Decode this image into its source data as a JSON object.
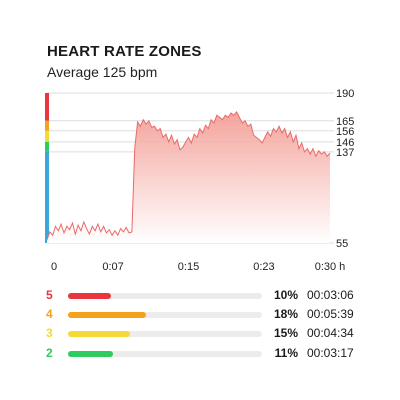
{
  "header": {
    "title": "HEART RATE ZONES",
    "subtitle": "Average 125 bpm"
  },
  "chart_data": {
    "type": "area",
    "title": "HEART RATE ZONES",
    "ylim": [
      55,
      190
    ],
    "xlim": [
      0,
      0.5
    ],
    "y_ticks": [
      "190",
      "165",
      "156",
      "146",
      "137",
      "55"
    ],
    "y_tick_values": [
      190,
      165,
      156,
      146,
      137,
      55
    ],
    "x_ticks": [
      "0",
      "0:07",
      "0:15",
      "0:23",
      "0:30 h"
    ],
    "x_tick_values": [
      0,
      0.1167,
      0.25,
      0.3833,
      0.5
    ],
    "zone_band_colors": [
      "#e8363c",
      "#f4a21a",
      "#f5d936",
      "#2ecc5e",
      "#3aa8d8"
    ],
    "line_color": "#e86a6a",
    "fill_color": "#f7b5b0",
    "series": [
      {
        "values": [
          [
            0.0,
            58
          ],
          [
            0.005,
            65
          ],
          [
            0.01,
            62
          ],
          [
            0.015,
            70
          ],
          [
            0.02,
            66
          ],
          [
            0.025,
            72
          ],
          [
            0.03,
            64
          ],
          [
            0.035,
            70
          ],
          [
            0.04,
            67
          ],
          [
            0.045,
            73
          ],
          [
            0.05,
            63
          ],
          [
            0.055,
            71
          ],
          [
            0.06,
            66
          ],
          [
            0.065,
            74
          ],
          [
            0.07,
            68
          ],
          [
            0.075,
            63
          ],
          [
            0.08,
            70
          ],
          [
            0.085,
            66
          ],
          [
            0.09,
            72
          ],
          [
            0.095,
            65
          ],
          [
            0.1,
            70
          ],
          [
            0.105,
            64
          ],
          [
            0.11,
            67
          ],
          [
            0.115,
            62
          ],
          [
            0.12,
            66
          ],
          [
            0.125,
            62
          ],
          [
            0.13,
            68
          ],
          [
            0.135,
            65
          ],
          [
            0.14,
            69
          ],
          [
            0.145,
            64
          ],
          [
            0.15,
            65
          ],
          [
            0.155,
            140
          ],
          [
            0.16,
            164
          ],
          [
            0.165,
            160
          ],
          [
            0.17,
            166
          ],
          [
            0.175,
            162
          ],
          [
            0.18,
            165
          ],
          [
            0.185,
            159
          ],
          [
            0.19,
            160
          ],
          [
            0.195,
            156
          ],
          [
            0.2,
            158
          ],
          [
            0.205,
            150
          ],
          [
            0.21,
            153
          ],
          [
            0.215,
            146
          ],
          [
            0.22,
            152
          ],
          [
            0.225,
            144
          ],
          [
            0.23,
            148
          ],
          [
            0.235,
            139
          ],
          [
            0.24,
            141
          ],
          [
            0.245,
            146
          ],
          [
            0.25,
            150
          ],
          [
            0.255,
            145
          ],
          [
            0.26,
            153
          ],
          [
            0.265,
            150
          ],
          [
            0.27,
            158
          ],
          [
            0.275,
            154
          ],
          [
            0.28,
            161
          ],
          [
            0.285,
            158
          ],
          [
            0.29,
            166
          ],
          [
            0.295,
            163
          ],
          [
            0.3,
            170
          ],
          [
            0.305,
            168
          ],
          [
            0.31,
            166
          ],
          [
            0.315,
            170
          ],
          [
            0.32,
            168
          ],
          [
            0.325,
            172
          ],
          [
            0.33,
            170
          ],
          [
            0.335,
            173
          ],
          [
            0.34,
            168
          ],
          [
            0.345,
            163
          ],
          [
            0.35,
            165
          ],
          [
            0.355,
            160
          ],
          [
            0.36,
            162
          ],
          [
            0.365,
            152
          ],
          [
            0.37,
            150
          ],
          [
            0.375,
            148
          ],
          [
            0.38,
            145
          ],
          [
            0.385,
            150
          ],
          [
            0.39,
            155
          ],
          [
            0.395,
            151
          ],
          [
            0.4,
            158
          ],
          [
            0.405,
            155
          ],
          [
            0.41,
            160
          ],
          [
            0.415,
            154
          ],
          [
            0.42,
            158
          ],
          [
            0.425,
            150
          ],
          [
            0.43,
            155
          ],
          [
            0.435,
            146
          ],
          [
            0.44,
            152
          ],
          [
            0.445,
            140
          ],
          [
            0.45,
            145
          ],
          [
            0.455,
            137
          ],
          [
            0.46,
            140
          ],
          [
            0.465,
            135
          ],
          [
            0.47,
            140
          ],
          [
            0.475,
            133
          ],
          [
            0.48,
            138
          ],
          [
            0.485,
            135
          ],
          [
            0.49,
            137
          ],
          [
            0.495,
            133
          ],
          [
            0.5,
            136
          ]
        ]
      }
    ]
  },
  "zones": [
    {
      "number": "5",
      "color": "#e8363c",
      "fraction": 0.22,
      "percent": "10%",
      "time": "00:03:06"
    },
    {
      "number": "4",
      "color": "#f4a21a",
      "fraction": 0.4,
      "percent": "18%",
      "time": "00:05:39"
    },
    {
      "number": "3",
      "color": "#f5d936",
      "fraction": 0.32,
      "percent": "15%",
      "time": "00:04:34"
    },
    {
      "number": "2",
      "color": "#2ecc5e",
      "fraction": 0.23,
      "percent": "11%",
      "time": "00:03:17"
    }
  ]
}
